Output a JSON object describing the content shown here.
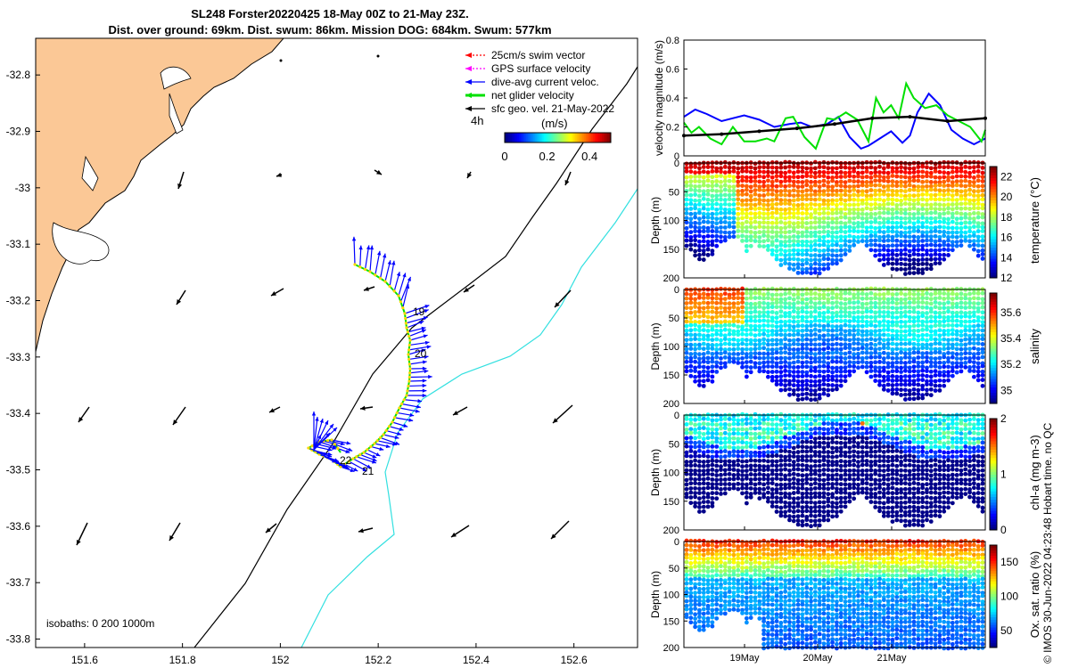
{
  "title_line1": "SL248 Forster20220425 18-May 00Z to 21-May 23Z.",
  "title_line2": "Dist. over ground: 69km. Dist. swum: 86km. Mission DOG: 684km. Swum: 577km",
  "colors": {
    "land": "#fbc896",
    "coast": "#000000",
    "isobath_200": "#000000",
    "isobath_1000": "#33e0e0",
    "glider_dive": "#0000ff",
    "net_velocity": "#00e000",
    "track": "#ffd700",
    "sfc_vector": "#000000"
  },
  "map": {
    "x_ticks": [
      "151.6",
      "151.8",
      "152",
      "152.2",
      "152.4",
      "152.6"
    ],
    "y_ticks": [
      "-32.8",
      "-32.9",
      "-33",
      "-33.1",
      "-33.2",
      "-33.3",
      "-33.4",
      "-33.5",
      "-33.6",
      "-33.7",
      "-33.8"
    ],
    "x_range": [
      151.5,
      152.73
    ],
    "y_range": [
      -33.815,
      -32.735
    ],
    "isobath_label": "isobaths: 0   200  1000m",
    "day_labels": [
      "19",
      "20",
      "21",
      "22"
    ],
    "legend": [
      {
        "label": "25cm/s swim vector",
        "color": "#ff0000",
        "style": "dotted"
      },
      {
        "label": "GPS surface velocity",
        "color": "#ff00ff",
        "style": "dotted"
      },
      {
        "label": "dive-avg current veloc.",
        "color": "#0000ff",
        "style": "solid"
      },
      {
        "label": "net glider velocity",
        "color": "#00e000",
        "style": "thick"
      },
      {
        "label": "sfc geo. vel. 21-May-2022",
        "color": "#000000",
        "style": "solid"
      }
    ],
    "colorbar": {
      "label": "(m/s)",
      "time_label": "4h",
      "ticks": [
        "0",
        "0.2",
        "0.4"
      ],
      "range": [
        0,
        0.5
      ]
    }
  },
  "chart_data": [
    {
      "type": "line",
      "title": "velocity magnitude",
      "xlabel": "",
      "ylabel": "velocity magnitude (m/s)",
      "ylim": [
        0,
        0.8
      ],
      "yticks": [
        "0",
        "0.2",
        "0.4",
        "0.6",
        "0.8"
      ],
      "xlim": [
        0,
        4
      ],
      "series": [
        {
          "name": "dive-avg current veloc.",
          "color": "#0000ff",
          "x": [
            0,
            0.15,
            0.3,
            0.5,
            0.8,
            1.0,
            1.2,
            1.4,
            1.55,
            1.7,
            1.9,
            2.05,
            2.2,
            2.35,
            2.45,
            2.6,
            2.75,
            2.9,
            3.0,
            3.1,
            3.25,
            3.4,
            3.55,
            3.7,
            3.85,
            4.0
          ],
          "y": [
            0.27,
            0.32,
            0.29,
            0.24,
            0.28,
            0.25,
            0.2,
            0.22,
            0.23,
            0.2,
            0.22,
            0.27,
            0.13,
            0.05,
            0.07,
            0.12,
            0.17,
            0.09,
            0.14,
            0.3,
            0.43,
            0.35,
            0.18,
            0.12,
            0.08,
            0.12
          ]
        },
        {
          "name": "net glider velocity",
          "color": "#00e000",
          "x": [
            0,
            0.1,
            0.2,
            0.35,
            0.5,
            0.65,
            0.8,
            0.95,
            1.1,
            1.2,
            1.35,
            1.45,
            1.6,
            1.75,
            1.9,
            2.0,
            2.15,
            2.3,
            2.45,
            2.55,
            2.65,
            2.75,
            2.85,
            2.95,
            3.05,
            3.2,
            3.35,
            3.5,
            3.65,
            3.8,
            3.95,
            4.0
          ],
          "y": [
            0.23,
            0.16,
            0.2,
            0.12,
            0.08,
            0.2,
            0.1,
            0.1,
            0.12,
            0.1,
            0.26,
            0.27,
            0.13,
            0.05,
            0.26,
            0.25,
            0.3,
            0.25,
            0.1,
            0.4,
            0.3,
            0.35,
            0.26,
            0.5,
            0.4,
            0.33,
            0.35,
            0.28,
            0.24,
            0.2,
            0.1,
            0.18
          ]
        },
        {
          "name": "sfc geo. vel.",
          "color": "#000000",
          "x": [
            0,
            0.5,
            1.0,
            1.5,
            2.0,
            2.5,
            3.0,
            3.5,
            4.0
          ],
          "y": [
            0.14,
            0.15,
            0.17,
            0.19,
            0.22,
            0.26,
            0.27,
            0.24,
            0.26
          ]
        }
      ]
    },
    {
      "type": "scatter",
      "ylabel": "Depth (m)",
      "yticks": [
        "0",
        "50",
        "100",
        "150",
        "200"
      ],
      "cbar_label": "temperature (°C)",
      "cbar_ticks": [
        "12",
        "14",
        "16",
        "18",
        "20",
        "22"
      ],
      "crange": [
        12,
        23
      ]
    },
    {
      "type": "scatter",
      "ylabel": "Depth (m)",
      "yticks": [
        "0",
        "50",
        "100",
        "150",
        "200"
      ],
      "cbar_label": "salinity",
      "cbar_ticks": [
        "35",
        "35.2",
        "35.4",
        "35.6"
      ],
      "crange": [
        34.9,
        35.75
      ]
    },
    {
      "type": "scatter",
      "ylabel": "Depth (m)",
      "yticks": [
        "0",
        "50",
        "100",
        "150",
        "200"
      ],
      "cbar_label": "chl-a (mg m-3)",
      "cbar_ticks": [
        "0",
        "1",
        "2"
      ],
      "crange": [
        0,
        2
      ]
    },
    {
      "type": "scatter",
      "ylabel": "Depth (m)",
      "yticks": [
        "0",
        "50",
        "100",
        "150",
        "200"
      ],
      "cbar_label": "Ox. sat. ratio (%)",
      "cbar_ticks": [
        "50",
        "100",
        "150"
      ],
      "crange": [
        25,
        175
      ],
      "x_ticks": [
        "19May",
        "20May",
        "21May"
      ]
    }
  ],
  "footer_note": "© IMOS 30-Jun-2022 04:23:48 Hobart time. no QC"
}
